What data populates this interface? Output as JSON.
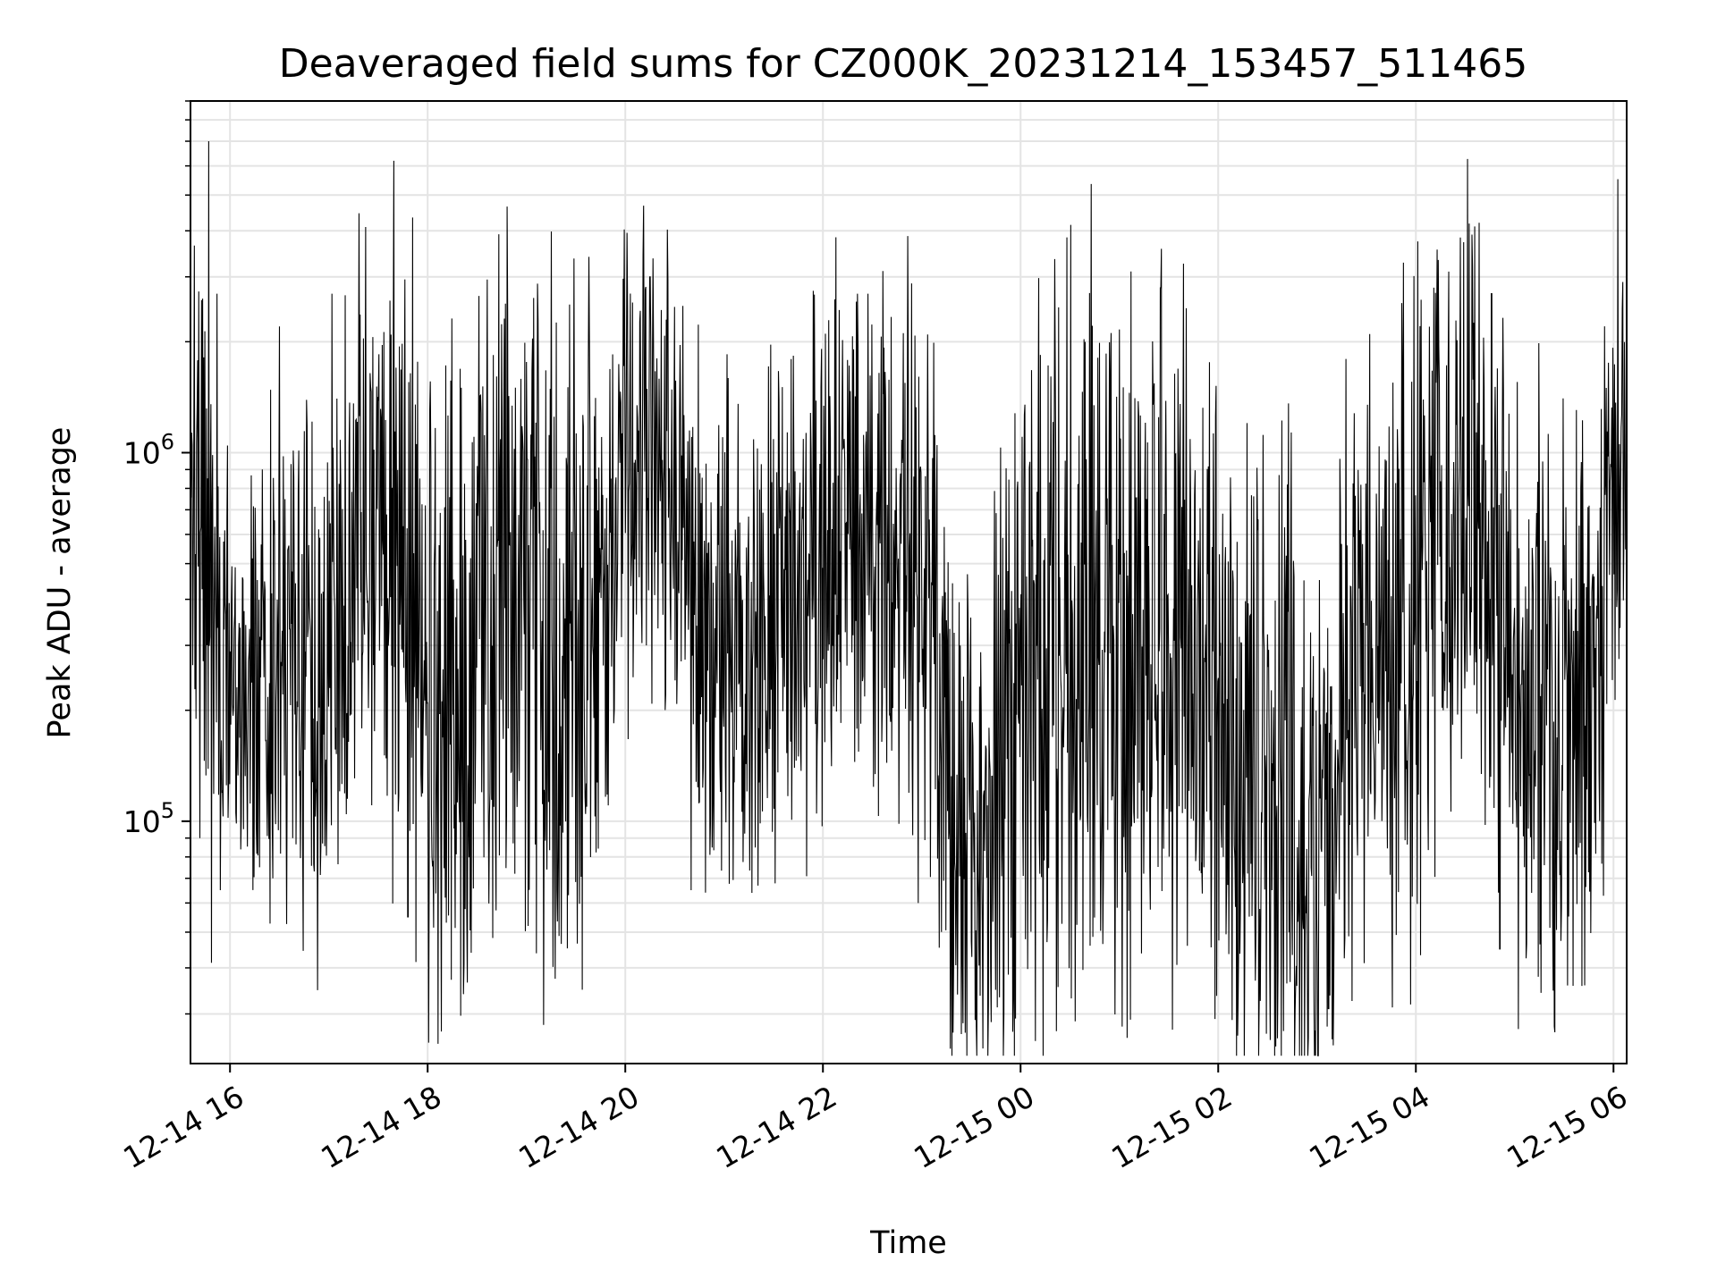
{
  "chart_data": {
    "type": "line",
    "title": "Deaveraged field sums for CZ000K_20231214_153457_511465",
    "xlabel": "Time",
    "ylabel": "Peak ADU - average",
    "x_scale": "time",
    "y_scale": "log",
    "xlim": [
      "2023-12-14 15:36",
      "2023-12-15 06:08"
    ],
    "ylim": [
      22000,
      9000000
    ],
    "x_ticks": [
      {
        "value": "2023-12-14 16:00",
        "label": "12-14 16"
      },
      {
        "value": "2023-12-14 18:00",
        "label": "12-14 18"
      },
      {
        "value": "2023-12-14 20:00",
        "label": "12-14 20"
      },
      {
        "value": "2023-12-14 22:00",
        "label": "12-14 22"
      },
      {
        "value": "2023-12-15 00:00",
        "label": "12-15 00"
      },
      {
        "value": "2023-12-15 02:00",
        "label": "12-15 02"
      },
      {
        "value": "2023-12-15 04:00",
        "label": "12-15 04"
      },
      {
        "value": "2023-12-15 06:00",
        "label": "12-15 06"
      }
    ],
    "y_ticks": [
      {
        "value": 100000,
        "base": "10",
        "exp": "5"
      },
      {
        "value": 1000000,
        "base": "10",
        "exp": "6"
      }
    ],
    "grid": true,
    "line_color": "#000000",
    "series": [
      {
        "x": [
          "2023-12-14 15:36",
          "2023-12-14 15:42",
          "2023-12-14 15:48",
          "2023-12-14 15:54",
          "2023-12-14 16:00",
          "2023-12-14 16:20",
          "2023-12-14 16:40",
          "2023-12-14 17:00",
          "2023-12-14 17:20",
          "2023-12-14 17:40",
          "2023-12-14 18:00",
          "2023-12-14 18:20",
          "2023-12-14 18:40",
          "2023-12-14 19:00",
          "2023-12-14 19:20",
          "2023-12-14 19:40",
          "2023-12-14 20:00",
          "2023-12-14 20:20",
          "2023-12-14 20:40",
          "2023-12-14 21:00",
          "2023-12-14 21:20",
          "2023-12-14 21:40",
          "2023-12-14 22:00",
          "2023-12-14 22:20",
          "2023-12-14 22:40",
          "2023-12-14 23:00",
          "2023-12-14 23:20",
          "2023-12-14 23:40",
          "2023-12-15 00:00",
          "2023-12-15 00:20",
          "2023-12-15 00:40",
          "2023-12-15 01:00",
          "2023-12-15 01:20",
          "2023-12-15 01:40",
          "2023-12-15 02:00",
          "2023-12-15 02:20",
          "2023-12-15 02:40",
          "2023-12-15 03:00",
          "2023-12-15 03:20",
          "2023-12-15 03:40",
          "2023-12-15 04:00",
          "2023-12-15 04:20",
          "2023-12-15 04:40",
          "2023-12-15 05:00",
          "2023-12-15 05:20",
          "2023-12-15 05:40",
          "2023-12-15 06:00",
          "2023-12-15 06:08"
        ],
        "y": [
          700000,
          800000,
          500000,
          230000,
          220000,
          240000,
          250000,
          230000,
          650000,
          700000,
          250000,
          200000,
          500000,
          400000,
          280000,
          400000,
          950000,
          1000000,
          500000,
          300000,
          300000,
          450000,
          600000,
          620000,
          600000,
          550000,
          110000,
          90000,
          250000,
          280000,
          350000,
          300000,
          330000,
          300000,
          180000,
          130000,
          130000,
          110000,
          180000,
          250000,
          350000,
          600000,
          650000,
          230000,
          200000,
          200000,
          600000,
          900000
        ],
        "spread": [
          2.2,
          2.2,
          2.5,
          1.8,
          1.8,
          1.8,
          1.8,
          2.0,
          2.2,
          2.6,
          2.6,
          2.6,
          2.4,
          2.6,
          2.6,
          2.4,
          1.9,
          1.8,
          1.9,
          1.8,
          2.0,
          2.2,
          2.0,
          2.0,
          2.0,
          2.0,
          2.0,
          2.0,
          2.6,
          2.6,
          2.8,
          2.8,
          2.6,
          2.6,
          2.6,
          2.6,
          2.6,
          2.6,
          2.6,
          2.4,
          2.4,
          2.4,
          2.4,
          2.4,
          2.4,
          2.4,
          2.2,
          2.0
        ],
        "spikes": [
          {
            "x": "2023-12-14 15:47",
            "y": 7000000
          },
          {
            "x": "2023-12-14 15:52",
            "y": 2700000
          },
          {
            "x": "2023-12-14 15:54",
            "y": 65000
          },
          {
            "x": "2023-12-14 16:26",
            "y": 70000
          },
          {
            "x": "2023-12-14 16:30",
            "y": 2200000
          },
          {
            "x": "2023-12-14 17:02",
            "y": 2700000
          },
          {
            "x": "2023-12-14 17:48",
            "y": 55000
          },
          {
            "x": "2023-12-14 19:01",
            "y": 52000
          },
          {
            "x": "2023-12-14 19:38",
            "y": 3400000
          },
          {
            "x": "2023-12-14 20:15",
            "y": 3000000
          },
          {
            "x": "2023-12-14 20:40",
            "y": 65000
          },
          {
            "x": "2023-12-14 22:21",
            "y": 2700000
          },
          {
            "x": "2023-12-14 22:58",
            "y": 60000
          },
          {
            "x": "2023-12-14 23:50",
            "y": 30000
          },
          {
            "x": "2023-12-15 01:25",
            "y": 2800000
          },
          {
            "x": "2023-12-15 02:25",
            "y": 33000
          },
          {
            "x": "2023-12-15 03:07",
            "y": 31000
          },
          {
            "x": "2023-12-15 04:20",
            "y": 3100000
          },
          {
            "x": "2023-12-15 04:46",
            "y": 2700000
          },
          {
            "x": "2023-12-15 04:51",
            "y": 45000
          }
        ]
      }
    ]
  }
}
